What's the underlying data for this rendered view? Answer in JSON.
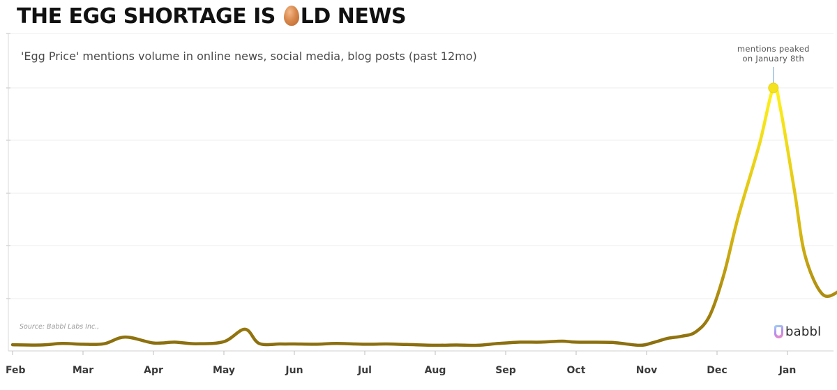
{
  "header": {
    "title_before": "THE EGG SHORTAGE IS ",
    "title_icon": "egg-icon",
    "title_after": "LD NEWS"
  },
  "chart_data": {
    "type": "line",
    "title": "THE EGG SHORTAGE IS 🥚LD NEWS",
    "subtitle": "'Egg Price' mentions volume in online news, social media, blog posts (past 12mo)",
    "x_ticks": [
      "Feb",
      "Mar",
      "Apr",
      "May",
      "Jun",
      "Jul",
      "Aug",
      "Sep",
      "Oct",
      "Nov",
      "Dec",
      "Jan"
    ],
    "x": [
      0,
      0.4,
      0.7,
      1.0,
      1.3,
      1.6,
      2.0,
      2.3,
      2.6,
      3.0,
      3.3,
      3.5,
      3.8,
      4.0,
      4.3,
      4.6,
      5.0,
      5.3,
      5.6,
      6.0,
      6.3,
      6.6,
      6.9,
      7.2,
      7.5,
      7.8,
      8.0,
      8.5,
      8.9,
      9.1,
      9.3,
      9.5,
      9.7,
      9.9,
      10.1,
      10.3,
      10.6,
      10.8,
      10.9,
      11.1,
      11.25,
      11.5,
      11.75
    ],
    "values": [
      0.5,
      0.4,
      1.0,
      0.7,
      0.9,
      3.5,
      1.2,
      1.5,
      0.9,
      1.7,
      6.5,
      1.0,
      0.8,
      0.8,
      0.7,
      1.0,
      0.7,
      0.8,
      0.6,
      0.3,
      0.4,
      0.3,
      1.0,
      1.5,
      1.5,
      1.9,
      1.5,
      1.4,
      0.3,
      1.4,
      3.0,
      3.8,
      5.5,
      12.0,
      28.0,
      50.0,
      78.0,
      100.0,
      92.0,
      60.0,
      35.0,
      20.0,
      21.5
    ],
    "y_axis_labels": "none",
    "ylim": [
      0,
      112
    ],
    "grid": "horizontal",
    "annotation": {
      "line1": "mentions peaked",
      "line2": "on January 8th"
    },
    "source": "Source:  Babbl Labs Inc.,",
    "colors": {
      "low": "#8a6e0f",
      "mid": "#c9a50f",
      "high": "#ffee1a",
      "peak_dot": "#f5e21e",
      "grid": "#e6e6e6"
    }
  },
  "branding": {
    "logo_icon": "babbl-logo-icon",
    "logo_text": "babbl"
  }
}
